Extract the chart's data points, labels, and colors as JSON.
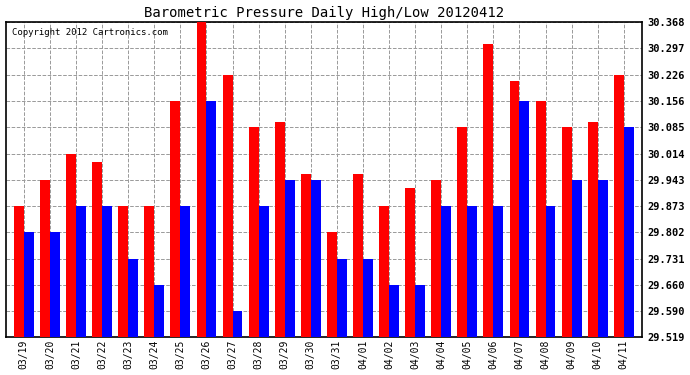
{
  "title": "Barometric Pressure Daily High/Low 20120412",
  "copyright": "Copyright 2012 Cartronics.com",
  "categories": [
    "03/19",
    "03/20",
    "03/21",
    "03/22",
    "03/23",
    "03/24",
    "03/25",
    "03/26",
    "03/27",
    "03/28",
    "03/29",
    "03/30",
    "03/31",
    "04/01",
    "04/02",
    "04/03",
    "04/04",
    "04/05",
    "04/06",
    "04/07",
    "04/08",
    "04/09",
    "04/10",
    "04/11"
  ],
  "highs": [
    29.873,
    29.943,
    30.014,
    29.99,
    29.873,
    29.873,
    30.156,
    30.368,
    30.226,
    30.085,
    30.1,
    29.96,
    29.802,
    29.96,
    29.873,
    29.92,
    29.943,
    30.085,
    30.31,
    30.21,
    30.156,
    30.085,
    30.1,
    30.226
  ],
  "lows": [
    29.802,
    29.802,
    29.873,
    29.873,
    29.731,
    29.66,
    29.873,
    30.156,
    29.59,
    29.873,
    29.943,
    29.943,
    29.731,
    29.731,
    29.66,
    29.66,
    29.873,
    29.873,
    29.873,
    30.156,
    29.873,
    29.943,
    29.943,
    30.085
  ],
  "high_color": "#ff0000",
  "low_color": "#0000ff",
  "bg_color": "#ffffff",
  "grid_color": "#999999",
  "yticks": [
    29.519,
    29.59,
    29.66,
    29.731,
    29.802,
    29.873,
    29.943,
    30.014,
    30.085,
    30.156,
    30.226,
    30.297,
    30.368
  ],
  "ymin": 29.519,
  "ymax": 30.368,
  "bar_width": 0.38
}
